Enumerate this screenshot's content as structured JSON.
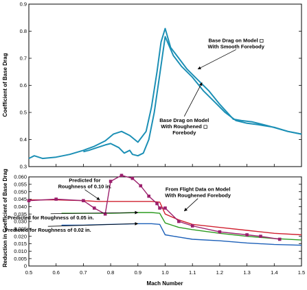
{
  "chart_data": [
    {
      "id": "top",
      "type": "line",
      "ylabel": "Coefficient of Base Drag",
      "xlim": [
        0.5,
        1.5
      ],
      "ylim": [
        0.3,
        0.9
      ],
      "yticks": [
        0.3,
        0.4,
        0.5,
        0.6,
        0.7,
        0.8,
        0.9
      ],
      "grid": false,
      "series": [
        {
          "color": "#1b8fb5",
          "x": [
            0.5,
            0.52,
            0.55,
            0.6,
            0.65,
            0.7,
            0.74,
            0.78,
            0.81,
            0.84,
            0.87,
            0.9,
            0.93,
            0.95,
            0.97,
            0.985,
            1.0,
            1.02,
            1.05,
            1.08,
            1.12,
            1.16,
            1.2,
            1.25,
            1.28,
            1.32,
            1.38,
            1.45,
            1.5
          ],
          "y": [
            0.33,
            0.34,
            0.33,
            0.335,
            0.345,
            0.36,
            0.375,
            0.395,
            0.42,
            0.43,
            0.415,
            0.39,
            0.43,
            0.52,
            0.65,
            0.76,
            0.81,
            0.74,
            0.7,
            0.66,
            0.62,
            0.58,
            0.53,
            0.475,
            0.47,
            0.465,
            0.45,
            0.43,
            0.42
          ]
        },
        {
          "color": "#1b8fb5",
          "x": [
            0.7,
            0.72,
            0.75,
            0.78,
            0.8,
            0.83,
            0.85,
            0.87,
            0.88,
            0.9,
            0.92,
            0.94,
            0.96,
            0.98,
            1.0,
            1.03,
            1.06,
            1.1,
            1.14,
            1.18,
            1.22,
            1.26,
            1.3,
            1.34,
            1.4,
            1.45,
            1.5
          ],
          "y": [
            0.355,
            0.36,
            0.37,
            0.38,
            0.385,
            0.37,
            0.35,
            0.36,
            0.345,
            0.34,
            0.35,
            0.4,
            0.5,
            0.64,
            0.78,
            0.71,
            0.67,
            0.63,
            0.58,
            0.54,
            0.5,
            0.47,
            0.46,
            0.455,
            0.445,
            0.43,
            0.42
          ]
        }
      ],
      "annotations": [
        {
          "lines": [
            "Base Drag on Model ◻",
            "With Smooth Forebody"
          ],
          "at": [
            1.26,
            0.76
          ],
          "arrow_to": [
            1.12,
            0.66
          ]
        },
        {
          "lines": [
            "Base Drag on Model",
            "With Roughened ◻",
            "Forebody"
          ],
          "at": [
            1.07,
            0.465
          ],
          "arrow_to": [
            1.135,
            0.61
          ]
        }
      ]
    },
    {
      "id": "bottom",
      "type": "line",
      "xlabel": "Mach Number",
      "ylabel": "Reduction in Coefficient of Base Drag",
      "xlim": [
        0.5,
        1.5
      ],
      "ylim": [
        0,
        0.06
      ],
      "xticks": [
        0.5,
        0.6,
        0.7,
        0.8,
        0.9,
        1.0,
        1.1,
        1.2,
        1.3,
        1.4,
        1.5
      ],
      "xtick_labels": [
        "0.5",
        "0.6",
        "0.7",
        "0.8",
        "0.9",
        "1.0",
        "1.1",
        "1.2",
        "1.3",
        "1.4",
        "1.5"
      ],
      "yticks": [
        0,
        0.005,
        0.01,
        0.015,
        0.02,
        0.025,
        0.03,
        0.035,
        0.04,
        0.045,
        0.05,
        0.055,
        0.06
      ],
      "ytick_labels": [
        "0",
        "0.005",
        "0.010",
        "0.015",
        "0.020",
        "0.025",
        "0.030",
        "0.035",
        "0.040",
        "0.045",
        "0.050",
        "0.055",
        "0.060"
      ],
      "grid": false,
      "series": [
        {
          "color": "#d0202f",
          "x": [
            0.5,
            0.6,
            0.7,
            0.75,
            0.8,
            0.85,
            0.9,
            0.95,
            0.98,
            1.0,
            1.05,
            1.1,
            1.2,
            1.3,
            1.4,
            1.5
          ],
          "y": [
            0.0445,
            0.0445,
            0.044,
            0.0435,
            0.0435,
            0.0435,
            0.0435,
            0.0435,
            0.043,
            0.035,
            0.031,
            0.028,
            0.026,
            0.024,
            0.022,
            0.021
          ]
        },
        {
          "color": "#2a9a1e",
          "x": [
            0.62,
            0.7,
            0.8,
            0.9,
            0.95,
            0.98,
            1.0,
            1.05,
            1.1,
            1.2,
            1.3,
            1.4,
            1.5
          ],
          "y": [
            0.0355,
            0.0355,
            0.0355,
            0.036,
            0.036,
            0.0355,
            0.029,
            0.026,
            0.0245,
            0.022,
            0.02,
            0.0185,
            0.0175
          ]
        },
        {
          "color": "#1b5fb8",
          "x": [
            0.62,
            0.7,
            0.8,
            0.9,
            0.95,
            0.98,
            1.0,
            1.05,
            1.1,
            1.2,
            1.3,
            1.4,
            1.5
          ],
          "y": [
            0.0275,
            0.0275,
            0.028,
            0.0285,
            0.0285,
            0.028,
            0.021,
            0.0195,
            0.018,
            0.017,
            0.0155,
            0.0145,
            0.014
          ]
        },
        {
          "color": "#9b1f6c",
          "markers": true,
          "x": [
            0.5,
            0.6,
            0.7,
            0.74,
            0.78,
            0.8,
            0.84,
            0.88,
            0.91,
            0.94,
            0.97,
            0.98,
            1.0,
            1.05,
            1.1,
            1.2,
            1.3,
            1.35,
            1.42
          ],
          "y": [
            0.044,
            0.045,
            0.044,
            0.039,
            0.035,
            0.057,
            0.061,
            0.059,
            0.054,
            0.047,
            0.042,
            0.039,
            0.039,
            0.03,
            0.027,
            0.023,
            0.021,
            0.02,
            0.018
          ]
        }
      ],
      "annotations": [
        {
          "lines": [
            "Predicted for",
            "Roughness of 0.10 in."
          ],
          "at": [
            0.705,
            0.0565
          ],
          "arrow_to": [
            0.76,
            0.0445
          ]
        },
        {
          "lines": [
            "From Flight Data on Model",
            "With Roughened Forebody"
          ],
          "at": [
            1.12,
            0.0505
          ],
          "arrow_to": [
            1.07,
            0.037
          ]
        },
        {
          "lines": [
            "Predicted for Roughness of 0.05 in."
          ],
          "at": [
            0.58,
            0.0315
          ],
          "arrow_to": [
            0.9,
            0.036
          ]
        },
        {
          "lines": [
            "Predicted for Roughness of 0.02 in."
          ],
          "at": [
            0.57,
            0.023
          ],
          "arrow_to": [
            0.9,
            0.0285
          ]
        }
      ]
    }
  ]
}
